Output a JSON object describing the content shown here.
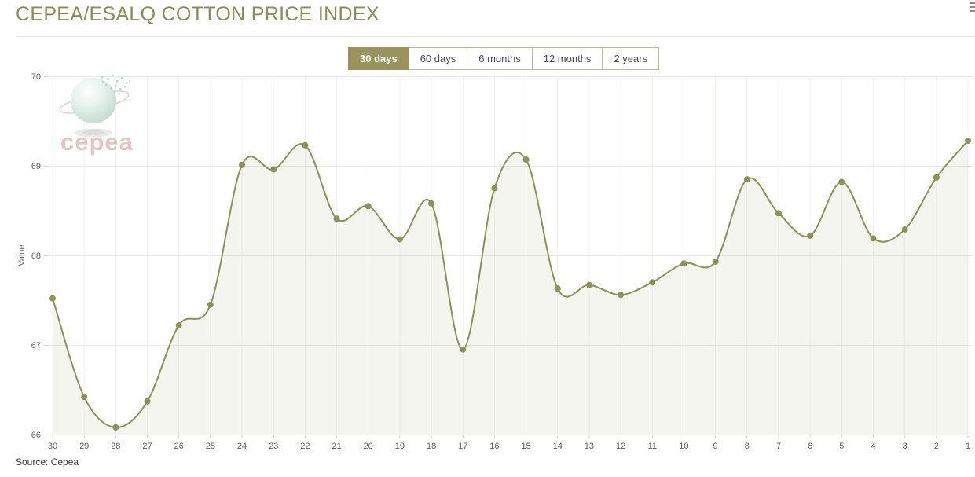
{
  "page": {
    "title": "CEPEA/ESALQ COTTON PRICE INDEX",
    "source": "Source: Cepea"
  },
  "period_buttons": [
    {
      "label": "30 days",
      "active": true
    },
    {
      "label": "60 days",
      "active": false
    },
    {
      "label": "6 months",
      "active": false
    },
    {
      "label": "12 months",
      "active": false
    },
    {
      "label": "2 years",
      "active": false
    }
  ],
  "logo": {
    "text": "cepea"
  },
  "colors": {
    "title_olive": "#8b8b55",
    "active_button_bg": "#9a945c",
    "line_olive": "#8e9156",
    "area_fill": "#f4f4ea",
    "logo_pink": "#e3c2bf",
    "axis_text": "#606060"
  },
  "chart_data": {
    "type": "area",
    "title": "CEPEA/ESALQ COTTON PRICE INDEX",
    "xlabel": "",
    "ylabel": "Value",
    "ylim": [
      66,
      70
    ],
    "yticks": [
      66,
      67,
      68,
      69,
      70
    ],
    "grid": true,
    "legend": "none",
    "line_color": "#8e9156",
    "categories": [
      "30",
      "29",
      "28",
      "27",
      "26",
      "25",
      "24",
      "23",
      "22",
      "21",
      "20",
      "19",
      "18",
      "17",
      "16",
      "15",
      "14",
      "13",
      "12",
      "11",
      "10",
      "9",
      "8",
      "7",
      "6",
      "5",
      "4",
      "3",
      "2",
      "1"
    ],
    "values": [
      67.52,
      66.42,
      66.08,
      66.37,
      67.22,
      67.45,
      69.01,
      68.96,
      69.23,
      68.41,
      68.55,
      68.18,
      68.58,
      66.95,
      68.75,
      69.07,
      67.63,
      67.67,
      67.56,
      67.7,
      67.91,
      67.93,
      68.85,
      68.47,
      68.22,
      68.82,
      68.19,
      68.29,
      68.87,
      69.28
    ]
  }
}
